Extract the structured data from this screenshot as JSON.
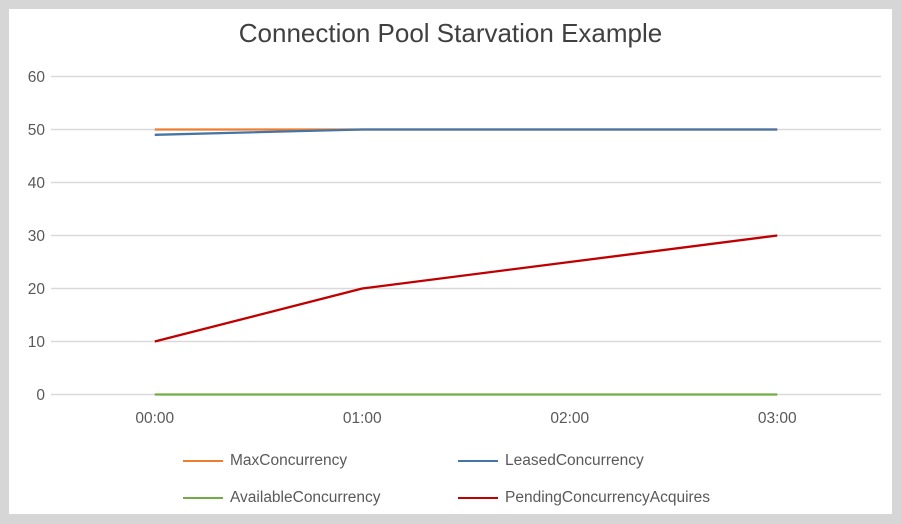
{
  "window": {
    "background_color": "#d6d6d6",
    "chart_background_color": "#ffffff"
  },
  "chart_data": {
    "type": "line",
    "title": "Connection Pool Starvation Example",
    "title_color": "#404040",
    "categories": [
      "00:00",
      "01:00",
      "02:00",
      "03:00"
    ],
    "series": [
      {
        "name": "MaxConcurrency",
        "values": [
          50,
          50,
          50,
          50
        ],
        "color": "#ED7D31"
      },
      {
        "name": "LeasedConcurrency",
        "values": [
          49,
          50,
          50,
          50
        ],
        "color": "#4575A5"
      },
      {
        "name": "AvailableConcurrency",
        "values": [
          0,
          0,
          0,
          0
        ],
        "color": "#70AD47"
      },
      {
        "name": "PendingConcurrencyAcquires",
        "values": [
          10,
          20,
          25,
          30
        ],
        "color": "#C00000"
      }
    ],
    "xlabel": "",
    "ylabel": "",
    "ylim": [
      0,
      60
    ],
    "yticks": [
      0,
      10,
      20,
      30,
      40,
      50,
      60
    ],
    "grid": "horizontal",
    "grid_color": "#D9D9D9",
    "axis_label_color": "#595959",
    "legend_position": "bottom"
  }
}
